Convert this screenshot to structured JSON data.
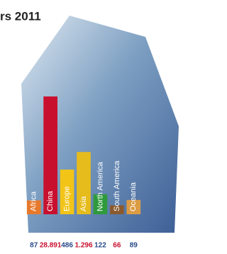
{
  "chart_data": {
    "type": "bar",
    "title": "rs 2011",
    "categories": [
      "Africa",
      "China",
      "Europe",
      "Asia",
      "North America",
      "South America",
      "Oceania"
    ],
    "values": [
      87,
      28891,
      486,
      1296,
      122,
      66,
      89
    ],
    "value_labels": [
      "87",
      "28.891",
      "486",
      "1.296",
      "122",
      "66",
      "89"
    ],
    "colors": [
      "#e8792c",
      "#c8102e",
      "#f2c418",
      "#e6bc1c",
      "#2f9a3c",
      "#8a5a2e",
      "#dc9c44"
    ],
    "log": true,
    "ylim": [
      40,
      30000
    ]
  }
}
